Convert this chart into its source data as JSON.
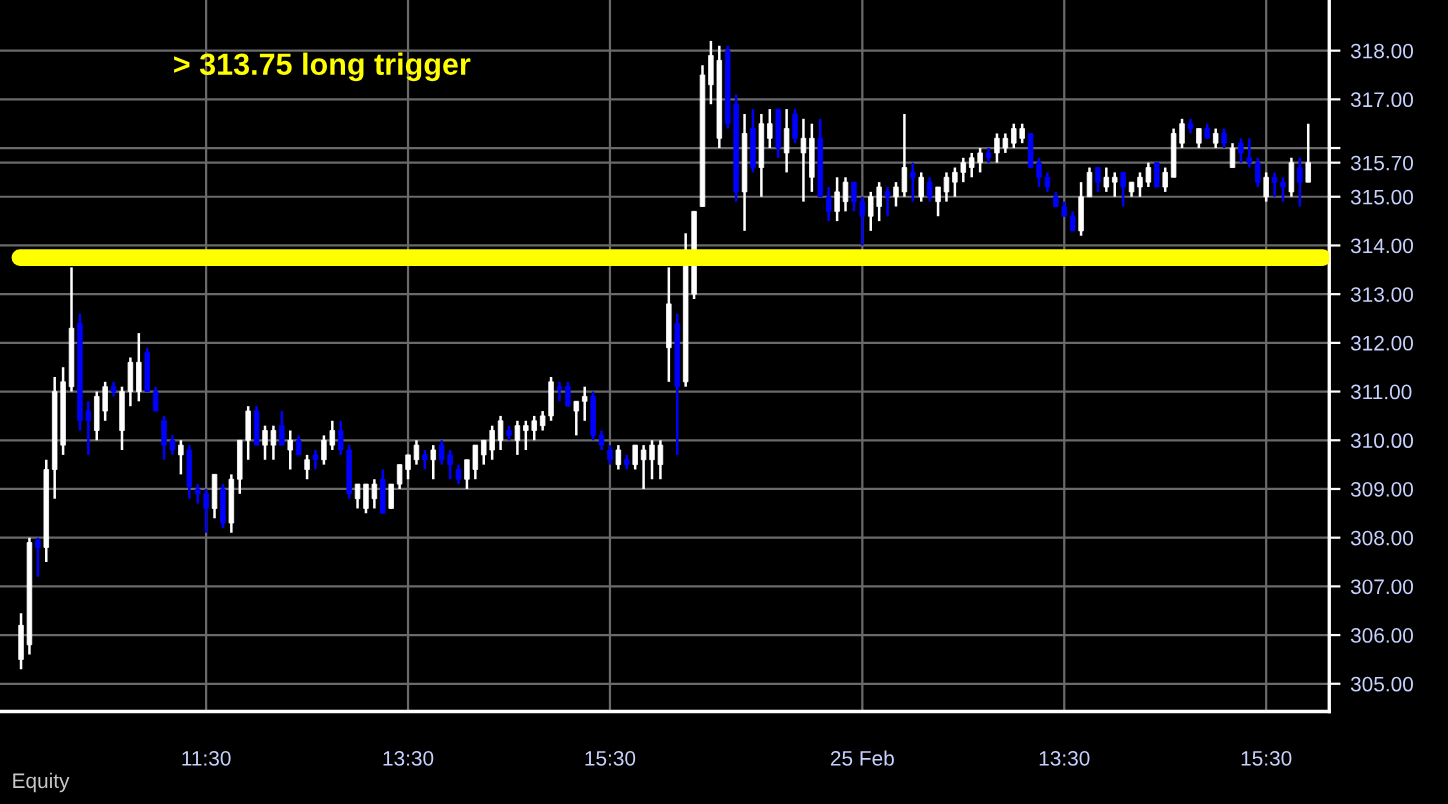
{
  "chart_data": {
    "type": "candlestick",
    "categories": [
      null,
      null,
      null,
      null,
      null,
      null,
      null,
      null,
      null,
      null,
      null,
      null,
      null,
      null,
      null,
      null,
      null,
      null,
      null,
      null,
      null,
      null,
      "11:30",
      null,
      null,
      null,
      null,
      null,
      null,
      null,
      null,
      null,
      null,
      null,
      null,
      null,
      null,
      null,
      null,
      null,
      null,
      null,
      null,
      null,
      null,
      null,
      "13:30",
      null,
      null,
      null,
      null,
      null,
      null,
      null,
      null,
      null,
      null,
      null,
      null,
      null,
      null,
      null,
      null,
      null,
      null,
      null,
      null,
      null,
      null,
      null,
      "15:30",
      null,
      null,
      null,
      null,
      null,
      null,
      null,
      null,
      null,
      null,
      null,
      null,
      null,
      null,
      null,
      null,
      null,
      null,
      null,
      null,
      null,
      null,
      null,
      null,
      null,
      null,
      null,
      null,
      null,
      "25 Feb",
      null,
      null,
      null,
      null,
      null,
      null,
      null,
      null,
      null,
      null,
      null,
      null,
      null,
      null,
      null,
      null,
      null,
      null,
      null,
      null,
      null,
      null,
      null,
      "13:30",
      null,
      null,
      null,
      null,
      null,
      null,
      null,
      null,
      null,
      null,
      null,
      null,
      null,
      null,
      null,
      null,
      null,
      null,
      null,
      null,
      null,
      null,
      null,
      "15:30",
      null,
      null,
      null,
      null,
      null
    ],
    "ohlc": [
      [
        305.5,
        306.45,
        305.3,
        306.2
      ],
      [
        305.8,
        308.0,
        305.6,
        307.9
      ],
      [
        307.95,
        308.0,
        307.2,
        307.8
      ],
      [
        307.8,
        309.6,
        307.5,
        309.4
      ],
      [
        309.4,
        311.3,
        308.8,
        311.0
      ],
      [
        309.9,
        311.5,
        309.7,
        311.2
      ],
      [
        311.1,
        313.55,
        311.0,
        312.3
      ],
      [
        312.4,
        312.6,
        310.2,
        310.4
      ],
      [
        310.6,
        310.8,
        309.7,
        310.4
      ],
      [
        310.2,
        311.0,
        310.0,
        310.9
      ],
      [
        310.6,
        311.2,
        310.4,
        311.1
      ],
      [
        311.1,
        311.2,
        310.9,
        311.0
      ],
      [
        310.2,
        311.1,
        309.8,
        311.0
      ],
      [
        311.0,
        311.7,
        310.7,
        311.6
      ],
      [
        311.0,
        312.2,
        310.8,
        311.6
      ],
      [
        311.8,
        311.9,
        311.0,
        311.0
      ],
      [
        311.0,
        311.1,
        310.6,
        310.6
      ],
      [
        310.4,
        310.5,
        309.6,
        309.9
      ],
      [
        310.0,
        310.1,
        309.7,
        309.8
      ],
      [
        309.7,
        310.0,
        309.3,
        309.9
      ],
      [
        309.8,
        309.9,
        308.8,
        309.05
      ],
      [
        309.0,
        309.1,
        308.7,
        308.9
      ],
      [
        308.9,
        309.0,
        308.1,
        308.6
      ],
      [
        308.6,
        309.3,
        308.4,
        309.3
      ],
      [
        309.0,
        309.1,
        308.2,
        308.3
      ],
      [
        308.3,
        309.3,
        308.1,
        309.2
      ],
      [
        309.2,
        310.0,
        308.9,
        310.0
      ],
      [
        310.0,
        310.7,
        309.6,
        310.6
      ],
      [
        310.6,
        310.7,
        309.9,
        309.9
      ],
      [
        309.9,
        310.3,
        309.6,
        310.2
      ],
      [
        309.9,
        310.3,
        309.6,
        310.2
      ],
      [
        310.3,
        310.6,
        309.9,
        309.9
      ],
      [
        309.8,
        310.2,
        309.4,
        310.0
      ],
      [
        310.0,
        310.1,
        309.7,
        309.7
      ],
      [
        309.4,
        309.7,
        309.2,
        309.6
      ],
      [
        309.7,
        309.8,
        309.4,
        309.6
      ],
      [
        309.6,
        310.1,
        309.5,
        310.0
      ],
      [
        309.9,
        310.4,
        309.8,
        310.2
      ],
      [
        310.2,
        310.4,
        309.7,
        309.8
      ],
      [
        309.8,
        309.9,
        308.8,
        308.9
      ],
      [
        308.8,
        309.1,
        308.6,
        309.1
      ],
      [
        308.6,
        309.1,
        308.5,
        309.1
      ],
      [
        308.8,
        309.2,
        308.6,
        309.1
      ],
      [
        309.2,
        309.4,
        308.5,
        308.5
      ],
      [
        308.6,
        309.1,
        308.6,
        309.1
      ],
      [
        309.1,
        309.5,
        309.0,
        309.5
      ],
      [
        309.4,
        309.7,
        309.2,
        309.7
      ],
      [
        309.6,
        310.0,
        309.5,
        309.9
      ],
      [
        309.7,
        309.8,
        309.4,
        309.6
      ],
      [
        309.6,
        309.9,
        309.2,
        309.8
      ],
      [
        309.9,
        310.0,
        309.5,
        309.6
      ],
      [
        309.7,
        309.8,
        309.2,
        309.5
      ],
      [
        309.4,
        309.5,
        309.1,
        309.2
      ],
      [
        309.2,
        309.6,
        309.0,
        309.6
      ],
      [
        309.4,
        309.9,
        309.2,
        309.9
      ],
      [
        309.7,
        310.0,
        309.5,
        310.0
      ],
      [
        309.8,
        310.3,
        309.6,
        310.2
      ],
      [
        310.0,
        310.5,
        309.8,
        310.4
      ],
      [
        310.2,
        310.3,
        310.0,
        310.1
      ],
      [
        310.0,
        310.4,
        309.7,
        310.3
      ],
      [
        310.2,
        310.4,
        309.8,
        310.3
      ],
      [
        310.2,
        310.5,
        310.0,
        310.4
      ],
      [
        310.3,
        310.6,
        310.2,
        310.5
      ],
      [
        310.5,
        311.3,
        310.4,
        311.2
      ],
      [
        311.1,
        311.2,
        310.8,
        311.05
      ],
      [
        311.1,
        311.2,
        310.7,
        310.7
      ],
      [
        310.6,
        310.8,
        310.1,
        310.8
      ],
      [
        310.8,
        311.1,
        310.4,
        310.9
      ],
      [
        310.9,
        311.0,
        310.0,
        310.1
      ],
      [
        310.1,
        310.2,
        309.8,
        309.9
      ],
      [
        309.8,
        309.9,
        309.5,
        309.6
      ],
      [
        309.5,
        309.9,
        309.4,
        309.8
      ],
      [
        309.6,
        309.7,
        309.4,
        309.5
      ],
      [
        309.5,
        309.9,
        309.4,
        309.9
      ],
      [
        309.6,
        309.9,
        309.0,
        309.8
      ],
      [
        309.6,
        310.0,
        309.2,
        309.9
      ],
      [
        309.5,
        310.0,
        309.2,
        309.9
      ],
      [
        311.9,
        313.55,
        311.2,
        312.8
      ],
      [
        312.4,
        312.6,
        309.7,
        311.1
      ],
      [
        311.2,
        314.25,
        311.1,
        313.9
      ],
      [
        313.0,
        314.7,
        312.9,
        314.7
      ],
      [
        314.8,
        317.7,
        314.8,
        317.5
      ],
      [
        317.3,
        318.2,
        316.9,
        317.9
      ],
      [
        316.2,
        318.1,
        316.0,
        317.8
      ],
      [
        318.0,
        318.1,
        316.4,
        316.5
      ],
      [
        316.9,
        317.1,
        314.9,
        315.1
      ],
      [
        315.1,
        316.7,
        314.3,
        316.3
      ],
      [
        316.4,
        316.8,
        315.5,
        315.6
      ],
      [
        315.6,
        316.7,
        315.0,
        316.5
      ],
      [
        316.2,
        316.8,
        316.0,
        316.5
      ],
      [
        316.8,
        316.8,
        315.8,
        316.0
      ],
      [
        315.9,
        316.8,
        315.5,
        316.4
      ],
      [
        316.7,
        316.8,
        316.1,
        316.2
      ],
      [
        315.9,
        316.6,
        314.9,
        316.2
      ],
      [
        315.4,
        316.5,
        315.1,
        316.2
      ],
      [
        316.2,
        316.6,
        315.0,
        315.0
      ],
      [
        315.0,
        315.2,
        314.5,
        314.7
      ],
      [
        314.7,
        315.4,
        314.5,
        315.1
      ],
      [
        314.9,
        315.4,
        314.7,
        315.3
      ],
      [
        315.3,
        315.3,
        314.7,
        314.9
      ],
      [
        314.9,
        315.0,
        314.0,
        314.6
      ],
      [
        314.6,
        315.1,
        314.3,
        315.0
      ],
      [
        314.8,
        315.3,
        314.5,
        315.2
      ],
      [
        315.1,
        315.2,
        314.6,
        315.0
      ],
      [
        315.0,
        315.3,
        314.8,
        315.2
      ],
      [
        315.1,
        316.7,
        315.0,
        315.6
      ],
      [
        315.5,
        315.7,
        314.9,
        315.4
      ],
      [
        315.0,
        315.5,
        314.9,
        315.4
      ],
      [
        315.3,
        315.4,
        314.9,
        315.0
      ],
      [
        314.9,
        315.2,
        314.6,
        315.2
      ],
      [
        315.1,
        315.5,
        314.9,
        315.4
      ],
      [
        315.3,
        315.6,
        315.0,
        315.5
      ],
      [
        315.5,
        315.8,
        315.3,
        315.7
      ],
      [
        315.6,
        315.9,
        315.4,
        315.8
      ],
      [
        315.7,
        316.0,
        315.5,
        315.9
      ],
      [
        315.9,
        316.0,
        315.7,
        315.8
      ],
      [
        315.9,
        316.3,
        315.7,
        316.2
      ],
      [
        316.0,
        316.3,
        315.9,
        316.2
      ],
      [
        316.1,
        316.5,
        316.0,
        316.4
      ],
      [
        316.2,
        316.5,
        316.1,
        316.4
      ],
      [
        316.3,
        316.3,
        315.6,
        315.6
      ],
      [
        315.7,
        315.8,
        315.2,
        315.4
      ],
      [
        315.4,
        315.5,
        315.1,
        315.2
      ],
      [
        315.0,
        315.1,
        314.8,
        314.8
      ],
      [
        314.8,
        314.9,
        314.6,
        314.6
      ],
      [
        314.6,
        314.7,
        314.3,
        314.3
      ],
      [
        314.3,
        315.3,
        314.2,
        315.0
      ],
      [
        315.0,
        315.6,
        315.0,
        315.5
      ],
      [
        315.6,
        315.6,
        315.1,
        315.3
      ],
      [
        315.2,
        315.6,
        315.1,
        315.4
      ],
      [
        315.3,
        315.5,
        315.0,
        315.4
      ],
      [
        315.5,
        315.5,
        314.8,
        315.2
      ],
      [
        315.1,
        315.3,
        315.0,
        315.3
      ],
      [
        315.2,
        315.5,
        315.0,
        315.4
      ],
      [
        315.3,
        315.7,
        315.2,
        315.6
      ],
      [
        315.7,
        315.7,
        315.2,
        315.2
      ],
      [
        315.2,
        315.6,
        315.1,
        315.5
      ],
      [
        315.4,
        316.4,
        315.4,
        316.3
      ],
      [
        316.1,
        316.6,
        316.0,
        316.5
      ],
      [
        316.5,
        316.6,
        316.3,
        316.4
      ],
      [
        316.1,
        316.4,
        316.0,
        316.4
      ],
      [
        316.4,
        316.5,
        316.2,
        316.2
      ],
      [
        316.1,
        316.4,
        316.0,
        316.3
      ],
      [
        316.3,
        316.4,
        316.0,
        316.1
      ],
      [
        315.6,
        316.1,
        315.6,
        316.0
      ],
      [
        316.1,
        316.2,
        315.7,
        315.9
      ],
      [
        315.8,
        316.2,
        315.6,
        315.7
      ],
      [
        315.7,
        315.8,
        315.2,
        315.3
      ],
      [
        315.0,
        315.5,
        314.9,
        315.4
      ],
      [
        315.4,
        315.5,
        315.0,
        315.3
      ],
      [
        315.3,
        315.4,
        314.9,
        315.2
      ],
      [
        315.1,
        315.8,
        315.0,
        315.7
      ],
      [
        315.6,
        315.8,
        314.8,
        315.3
      ],
      [
        315.3,
        316.5,
        315.3,
        315.7
      ]
    ],
    "colors": [
      "#ffffff",
      "#ffffff",
      "#0000ff",
      "#ffffff",
      "#ffffff",
      "#ffffff",
      "#ffffff",
      "#0000ff",
      "#0000ff",
      "#ffffff",
      "#ffffff",
      "#0000ff",
      "#ffffff",
      "#ffffff",
      "#ffffff",
      "#0000ff",
      "#0000ff",
      "#0000ff",
      "#0000ff",
      "#ffffff",
      "#0000ff",
      "#0000ff",
      "#0000ff",
      "#ffffff",
      "#0000ff",
      "#ffffff",
      "#ffffff",
      "#ffffff",
      "#0000ff",
      "#ffffff",
      "#ffffff",
      "#0000ff",
      "#ffffff",
      "#0000ff",
      "#ffffff",
      "#0000ff",
      "#ffffff",
      "#ffffff",
      "#0000ff",
      "#0000ff",
      "#ffffff",
      "#ffffff",
      "#ffffff",
      "#0000ff",
      "#ffffff",
      "#ffffff",
      "#ffffff",
      "#ffffff",
      "#0000ff",
      "#ffffff",
      "#0000ff",
      "#0000ff",
      "#0000ff",
      "#ffffff",
      "#ffffff",
      "#ffffff",
      "#ffffff",
      "#ffffff",
      "#0000ff",
      "#ffffff",
      "#ffffff",
      "#ffffff",
      "#ffffff",
      "#ffffff",
      "#0000ff",
      "#0000ff",
      "#ffffff",
      "#ffffff",
      "#0000ff",
      "#0000ff",
      "#0000ff",
      "#ffffff",
      "#0000ff",
      "#ffffff",
      "#ffffff",
      "#ffffff",
      "#ffffff",
      "#ffffff",
      "#0000ff",
      "#ffffff",
      "#ffffff",
      "#ffffff",
      "#ffffff",
      "#ffffff",
      "#0000ff",
      "#0000ff",
      "#ffffff",
      "#0000ff",
      "#ffffff",
      "#ffffff",
      "#0000ff",
      "#ffffff",
      "#0000ff",
      "#ffffff",
      "#ffffff",
      "#0000ff",
      "#0000ff",
      "#ffffff",
      "#ffffff",
      "#0000ff",
      "#0000ff",
      "#ffffff",
      "#ffffff",
      "#0000ff",
      "#ffffff",
      "#ffffff",
      "#0000ff",
      "#ffffff",
      "#0000ff",
      "#ffffff",
      "#ffffff",
      "#ffffff",
      "#ffffff",
      "#ffffff",
      "#ffffff",
      "#0000ff",
      "#ffffff",
      "#ffffff",
      "#ffffff",
      "#ffffff",
      "#0000ff",
      "#0000ff",
      "#0000ff",
      "#0000ff",
      "#0000ff",
      "#0000ff",
      "#ffffff",
      "#ffffff",
      "#0000ff",
      "#ffffff",
      "#ffffff",
      "#0000ff",
      "#ffffff",
      "#ffffff",
      "#ffffff",
      "#0000ff",
      "#ffffff",
      "#ffffff",
      "#ffffff",
      "#0000ff",
      "#ffffff",
      "#0000ff",
      "#ffffff",
      "#0000ff",
      "#ffffff",
      "#0000ff",
      "#0000ff",
      "#0000ff",
      "#ffffff",
      "#0000ff",
      "#0000ff",
      "#ffffff",
      "#0000ff",
      "#ffffff"
    ],
    "ylim": [
      304.43,
      319.04
    ],
    "yticks": [
      {
        "value": 305,
        "label": "305.00"
      },
      {
        "value": 306,
        "label": "306.00"
      },
      {
        "value": 307,
        "label": "307.00"
      },
      {
        "value": 308,
        "label": "308.00"
      },
      {
        "value": 309,
        "label": "309.00"
      },
      {
        "value": 310,
        "label": "310.00"
      },
      {
        "value": 311,
        "label": "311.00"
      },
      {
        "value": 312,
        "label": "312.00"
      },
      {
        "value": 313,
        "label": "313.00"
      },
      {
        "value": 314,
        "label": "314.00"
      },
      {
        "value": 315,
        "label": "315.00"
      },
      {
        "value": 315.7,
        "label": "315.70"
      },
      {
        "value": 316,
        "label": null
      },
      {
        "value": 317,
        "label": "317.00"
      },
      {
        "value": 318,
        "label": "318.00"
      }
    ],
    "grid": true,
    "ref_lines": [
      {
        "axis": "y",
        "value": 313.75,
        "label": "> 313.75 long trigger",
        "color": "#ffff00"
      }
    ],
    "annotations": [
      "Equity"
    ]
  }
}
